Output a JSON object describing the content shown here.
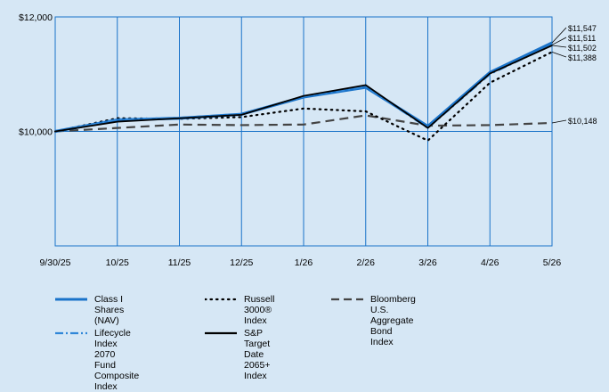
{
  "chart_data": {
    "type": "line",
    "x": [
      "9/30/25",
      "10/25",
      "11/25",
      "12/25",
      "1/26",
      "2/26",
      "3/26",
      "4/26",
      "5/26"
    ],
    "yticks": [
      "$10,000",
      "$12,000"
    ],
    "ylim": [
      8000,
      12000
    ],
    "grid": true,
    "series": [
      {
        "name": "Class I Shares (NAV)",
        "values": [
          10000,
          10200,
          10230,
          10300,
          10600,
          10770,
          10090,
          11030,
          11547
        ],
        "end_label": "$11,547",
        "color": "#1a73c9",
        "style": "solid"
      },
      {
        "name": "Russell 3000® Index",
        "values": [
          10000,
          10230,
          10220,
          10250,
          10400,
          10350,
          9840,
          10850,
          11388
        ],
        "end_label": "$11,388",
        "color": "#000000",
        "style": "dotted"
      },
      {
        "name": "Bloomberg U.S.\nAggregate Bond Index",
        "values": [
          10000,
          10060,
          10120,
          10110,
          10120,
          10280,
          10100,
          10110,
          10148
        ],
        "end_label": "$10,148",
        "color": "#444444",
        "style": "dashed"
      },
      {
        "name": "Lifecycle Index 2070\nFund Composite Index",
        "values": [
          10000,
          10210,
          10240,
          10300,
          10610,
          10780,
          10060,
          11000,
          11511
        ],
        "end_label": "$11,511",
        "color": "#2f86d8",
        "style": "dashdot"
      },
      {
        "name": "S&P Target Date\n2065+ Index",
        "values": [
          10000,
          10170,
          10230,
          10290,
          10620,
          10810,
          10060,
          11010,
          11502
        ],
        "end_label": "$11,502",
        "color": "#000000",
        "style": "solid"
      }
    ]
  }
}
